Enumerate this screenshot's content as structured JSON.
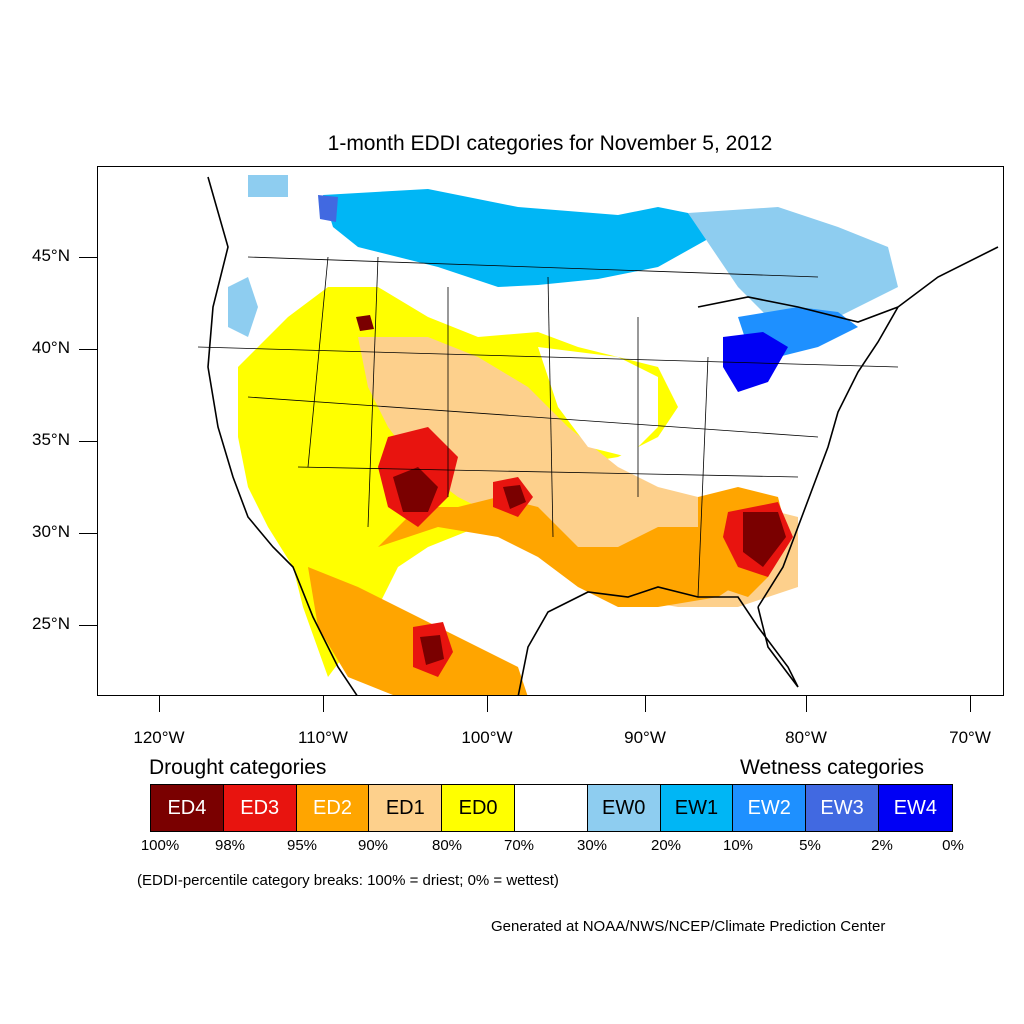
{
  "title": "1-month EDDI categories for November 5, 2012",
  "axes": {
    "lat_labels": [
      "45°N",
      "40°N",
      "35°N",
      "30°N",
      "25°N"
    ],
    "lon_labels": [
      "120°W",
      "110°W",
      "100°W",
      "90°W",
      "80°W",
      "70°W"
    ]
  },
  "legend": {
    "drought_heading": "Drought categories",
    "wetness_heading": "Wetness categories",
    "categories": [
      {
        "label": "ED4",
        "color": "#7a0000",
        "text_color": "#ffffff"
      },
      {
        "label": "ED3",
        "color": "#e8140f",
        "text_color": "#ffffff"
      },
      {
        "label": "ED2",
        "color": "#ffa500",
        "text_color": "#ffffff"
      },
      {
        "label": "ED1",
        "color": "#fdd08c",
        "text_color": "#000000"
      },
      {
        "label": "ED0",
        "color": "#ffff00",
        "text_color": "#000000"
      },
      {
        "label": "",
        "color": "#ffffff",
        "text_color": "#000000"
      },
      {
        "label": "EW0",
        "color": "#8ecdf0",
        "text_color": "#000000"
      },
      {
        "label": "EW1",
        "color": "#00b6f5",
        "text_color": "#000000"
      },
      {
        "label": "EW2",
        "color": "#1e90ff",
        "text_color": "#ffffff"
      },
      {
        "label": "EW3",
        "color": "#4169e1",
        "text_color": "#ffffff"
      },
      {
        "label": "EW4",
        "color": "#0000f5",
        "text_color": "#ffffff"
      }
    ],
    "breaks": [
      "100%",
      "98%",
      "95%",
      "90%",
      "80%",
      "70%",
      "30%",
      "20%",
      "10%",
      "5%",
      "2%",
      "0%"
    ]
  },
  "note": "(EDDI-percentile category breaks: 100% = driest; 0% = wettest)",
  "credit": "Generated at NOAA/NWS/NCEP/Climate Prediction Center"
}
